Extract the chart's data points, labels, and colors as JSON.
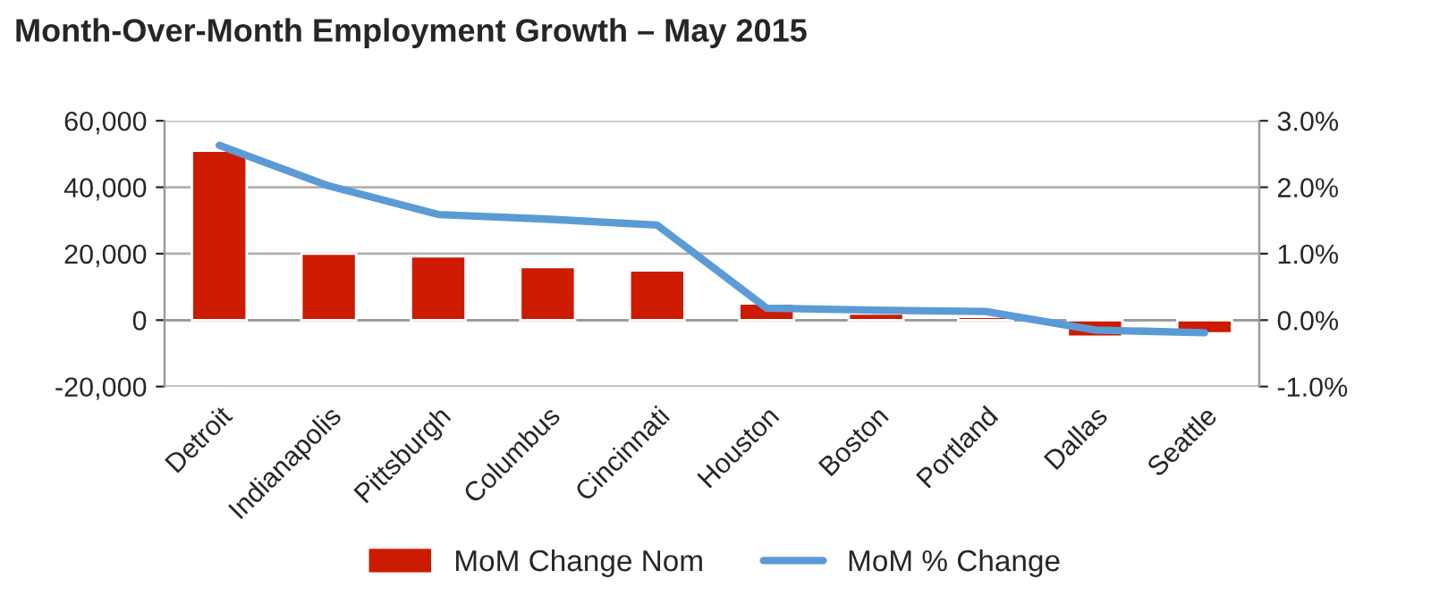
{
  "chart_data": {
    "type": "bar",
    "title": "Month-Over-Month Employment Growth – May 2015",
    "categories": [
      "Detroit",
      "Indianapolis",
      "Pittsburgh",
      "Columbus",
      "Cincinnati",
      "Houston",
      "Boston",
      "Portland",
      "Dallas",
      "Seattle"
    ],
    "series": [
      {
        "name": "MoM Change Nom",
        "color": "#cc1b00",
        "values": [
          51000,
          20000,
          19200,
          16000,
          15000,
          5000,
          2000,
          1000,
          -5000,
          -4000
        ]
      },
      {
        "name": "MoM % Change",
        "type": "line",
        "axis": "y2",
        "color": "#5b9bd5",
        "values": [
          2.63,
          2.02,
          1.59,
          1.52,
          1.43,
          0.18,
          0.15,
          0.13,
          -0.15,
          -0.19
        ]
      }
    ],
    "ylim": [
      -20000,
      60000
    ],
    "yticks": [
      {
        "value": -20000,
        "label": "-20,000"
      },
      {
        "value": 0,
        "label": "0"
      },
      {
        "value": 20000,
        "label": "20,000"
      },
      {
        "value": 40000,
        "label": "40,000"
      },
      {
        "value": 60000,
        "label": "60,000"
      }
    ],
    "y2lim": [
      -1,
      3
    ],
    "y2ticks": [
      {
        "value": -1,
        "label": "-1.0%"
      },
      {
        "value": 0,
        "label": "0.0%"
      },
      {
        "value": 1,
        "label": "1.0%"
      },
      {
        "value": 2,
        "label": "2.0%"
      },
      {
        "value": 3,
        "label": "3.0%"
      }
    ],
    "grid": "y",
    "legend": "bottom"
  }
}
